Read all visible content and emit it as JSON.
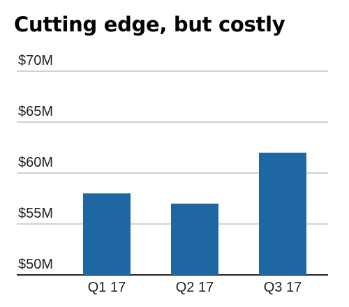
{
  "title": "Cutting edge, but costly",
  "chart_data": {
    "type": "bar",
    "title": "Cutting edge, but costly",
    "categories": [
      "Q1 17",
      "Q2 17",
      "Q3 17"
    ],
    "values": [
      58,
      57,
      62
    ],
    "value_unit": "$M",
    "yticks": [
      50,
      55,
      60,
      65,
      70
    ],
    "ytick_labels": [
      "$50M",
      "$55M",
      "$60M",
      "$65M",
      "$70M"
    ],
    "ylim": [
      50,
      70
    ],
    "grid": true,
    "legend": "none",
    "xlabel": "",
    "ylabel": "",
    "colors": {
      "bar": "#1F67A2",
      "grid": "#C4C4C4",
      "axis": "#222222"
    }
  }
}
